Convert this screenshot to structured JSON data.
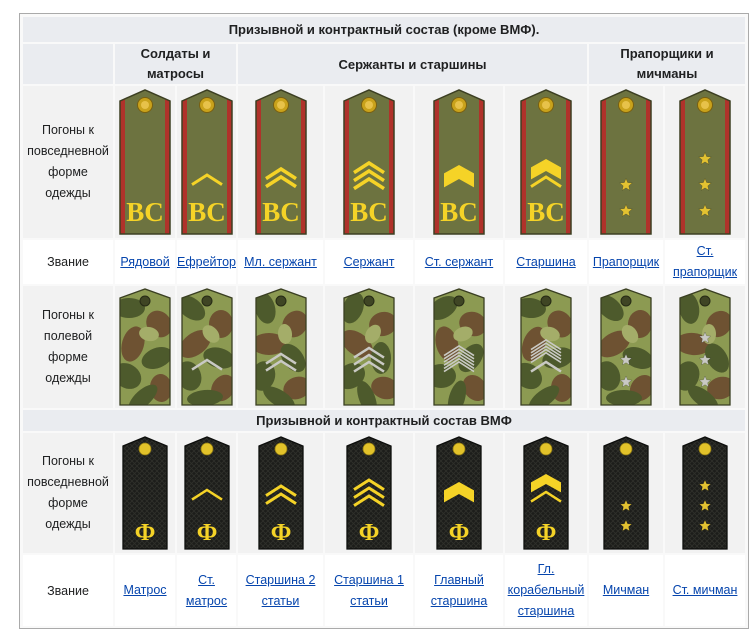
{
  "sections": {
    "army": {
      "title": "Призывной и контрактный состав (кроме ВМФ)."
    },
    "navy": {
      "title": "Призывной и контрактный состав ВМФ"
    }
  },
  "groups": {
    "soldiers": "Солдаты и матросы",
    "sergeants": "Сержанты и старшины",
    "warrants": "Прапорщики и мичманы"
  },
  "row_labels": {
    "army_everyday": "Погоны к повседневной форме одежды",
    "army_rank": "Звание",
    "army_field": "Погоны к полевой форме одежды",
    "navy_everyday": "Погоны к повседневной форме одежды",
    "navy_rank": "Звание"
  },
  "letters": {
    "army": "ВС",
    "navy": "Ф"
  },
  "army_ranks": [
    {
      "name": "Рядовой",
      "chevrons": 0,
      "stars": 0,
      "rank_level": "private"
    },
    {
      "name": "Ефрейтор",
      "chevrons": 1,
      "stars": 0,
      "rank_level": "corporal"
    },
    {
      "name": "Мл. сержант",
      "chevrons": 2,
      "stars": 0,
      "rank_level": "junior-sergeant"
    },
    {
      "name": "Сержант",
      "chevrons": 3,
      "stars": 0,
      "rank_level": "sergeant"
    },
    {
      "name": "Ст. сержант",
      "chevrons": 0,
      "stars": 0,
      "rank_level": "senior-sergeant"
    },
    {
      "name": "Старшина",
      "chevrons": 0,
      "stars": 0,
      "rank_level": "sergeant-major"
    },
    {
      "name": "Прапорщик",
      "chevrons": 0,
      "stars": 2,
      "rank_level": "warrant-officer"
    },
    {
      "name": "Ст. прапорщик",
      "chevrons": 0,
      "stars": 3,
      "rank_level": "senior-warrant-officer"
    }
  ],
  "navy_ranks": [
    {
      "name": "Матрос"
    },
    {
      "name": "Ст. матрос"
    },
    {
      "name": "Старшина 2 статьи"
    },
    {
      "name": "Старшина 1 статьи"
    },
    {
      "name": "Главный старшина"
    },
    {
      "name": "Гл. корабельный старшина"
    },
    {
      "name": "Мичман"
    },
    {
      "name": "Ст. мичман"
    }
  ],
  "colors": {
    "header_bg": "#eaecf0",
    "link": "#0645ad",
    "army_board": "#6d7340",
    "army_edge": "#b0322a",
    "insignia_yellow": "#f5d327",
    "navy_board": "#1c1d1a",
    "field_camo_dark": "#4d5a2c",
    "field_camo_light": "#8c9a52",
    "field_camo_brown": "#6e5232"
  }
}
